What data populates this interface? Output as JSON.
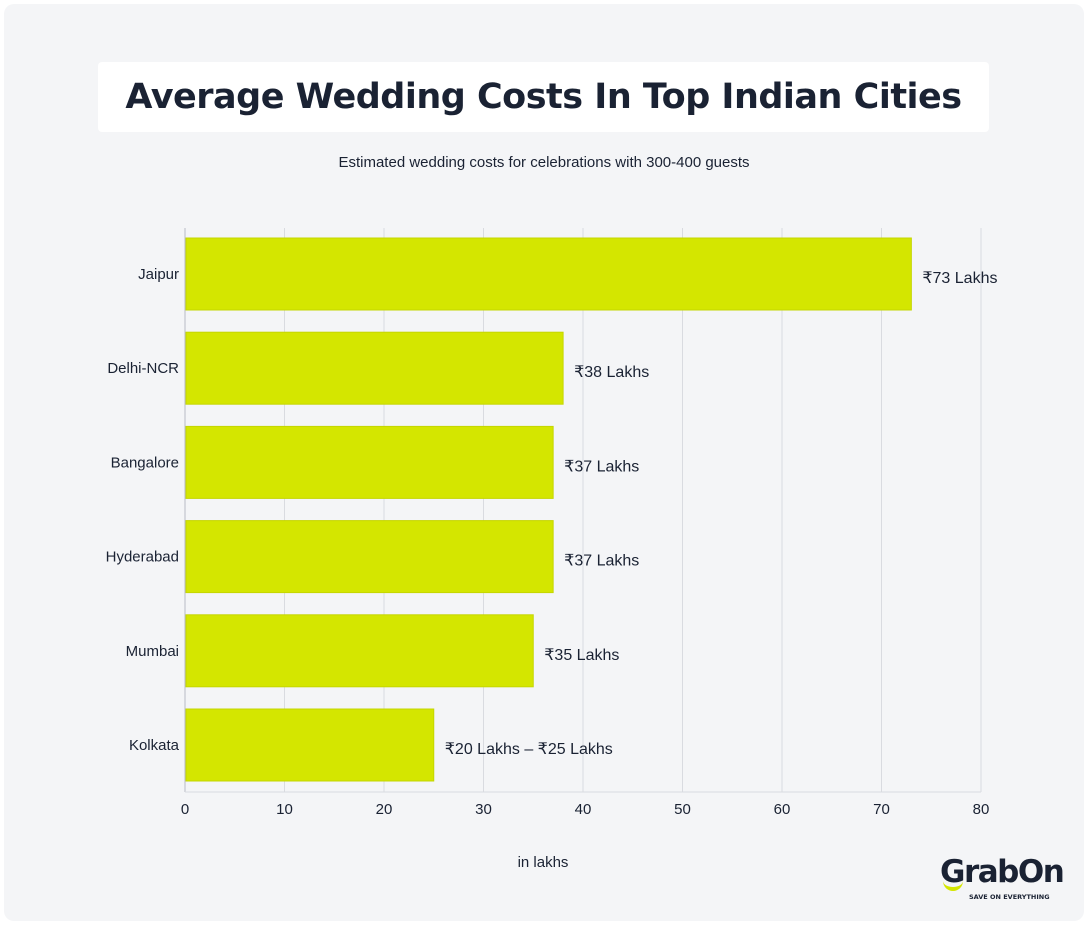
{
  "title": "Average Wedding Costs In Top Indian Cities",
  "subtitle": "Estimated wedding costs for celebrations with 300-400 guests",
  "logo": {
    "word": "GrabOn",
    "tagline": "SAVE ON EVERYTHING"
  },
  "colors": {
    "bar": "#d4e600",
    "background": "#f4f5f7",
    "text": "#1a2233",
    "grid": "#d9dbe0"
  },
  "chart_data": {
    "type": "bar",
    "orientation": "horizontal",
    "categories": [
      "Jaipur",
      "Delhi-NCR",
      "Bangalore",
      "Hyderabad",
      "Mumbai",
      "Kolkata"
    ],
    "values": [
      73,
      38,
      37,
      37,
      35,
      25
    ],
    "data_labels": [
      "₹73 Lakhs",
      "₹38 Lakhs",
      "₹37 Lakhs",
      "₹37 Lakhs",
      "₹35 Lakhs",
      "₹20 Lakhs – ₹25 Lakhs"
    ],
    "xlabel": "in lakhs",
    "ylabel": "",
    "xlim": [
      0,
      80
    ],
    "xticks": [
      0,
      10,
      20,
      30,
      40,
      50,
      60,
      70,
      80
    ],
    "grid": "vertical",
    "legend": "none"
  }
}
